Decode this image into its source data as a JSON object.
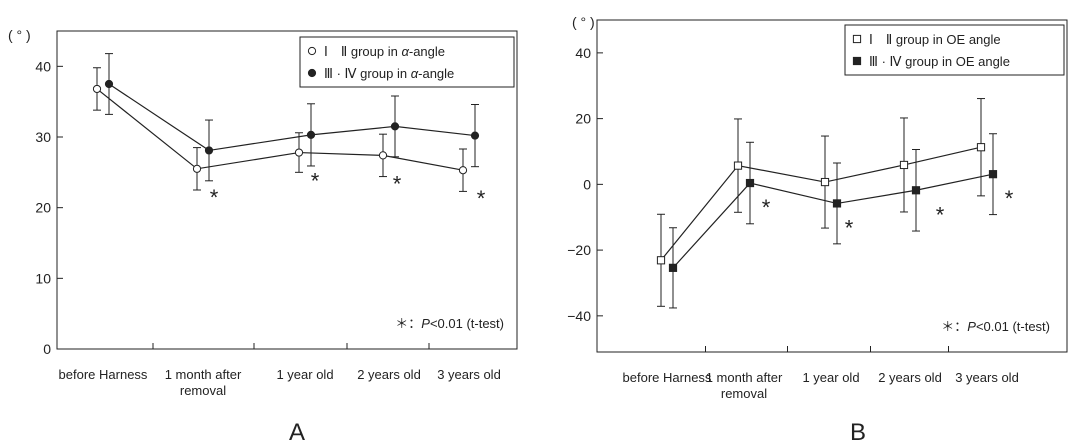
{
  "chart_data": [
    {
      "type": "line",
      "panel_label": "A",
      "unit_label": "( ° )",
      "categories": [
        [
          "before Harness"
        ],
        [
          "1 month after",
          "removal"
        ],
        [
          "1 year old"
        ],
        [
          "2 years old"
        ],
        [
          "3 years old"
        ]
      ],
      "yticks": [
        0,
        10,
        20,
        30,
        40
      ],
      "ylim": [
        0,
        45
      ],
      "legend_position": "top-right",
      "series": [
        {
          "name": "Ⅰ　Ⅱ group in α-angle",
          "marker": "open-circle",
          "values": [
            36.8,
            25.5,
            27.8,
            27.4,
            25.3
          ],
          "errors": [
            3.0,
            3.0,
            2.8,
            3.0,
            3.0
          ]
        },
        {
          "name": "Ⅲ · Ⅳ group in α-angle",
          "marker": "filled-circle",
          "values": [
            37.5,
            28.1,
            30.3,
            31.5,
            30.2
          ],
          "errors": [
            4.3,
            4.3,
            4.4,
            4.3,
            4.4
          ]
        }
      ],
      "significance_marks": [
        "",
        "*",
        "*",
        "*",
        "*"
      ],
      "annotation": "＊：P<0.01 (t-test)"
    },
    {
      "type": "line",
      "panel_label": "B",
      "unit_label": "( ° )",
      "categories": [
        [
          "before Harness"
        ],
        [
          "1 month after",
          "removal"
        ],
        [
          "1 year old"
        ],
        [
          "2 years old"
        ],
        [
          "3 years old"
        ]
      ],
      "yticks": [
        -40,
        -20,
        0,
        20,
        40
      ],
      "ylim": [
        -51,
        50
      ],
      "legend_position": "top-right",
      "series": [
        {
          "name": "Ⅰ　Ⅱ group in OE angle",
          "marker": "open-square",
          "values": [
            -23.1,
            5.7,
            0.7,
            5.9,
            11.3
          ],
          "errors": [
            14.0,
            14.2,
            14.0,
            14.3,
            14.8
          ]
        },
        {
          "name": "Ⅲ · Ⅳ group in OE angle",
          "marker": "filled-square",
          "values": [
            -25.4,
            0.4,
            -5.8,
            -1.8,
            3.1
          ],
          "errors": [
            12.2,
            12.4,
            12.3,
            12.4,
            12.3
          ]
        }
      ],
      "significance_marks": [
        "",
        "*",
        "*",
        "*",
        "*"
      ],
      "annotation": "＊：P<0.01 (t-test)"
    }
  ]
}
